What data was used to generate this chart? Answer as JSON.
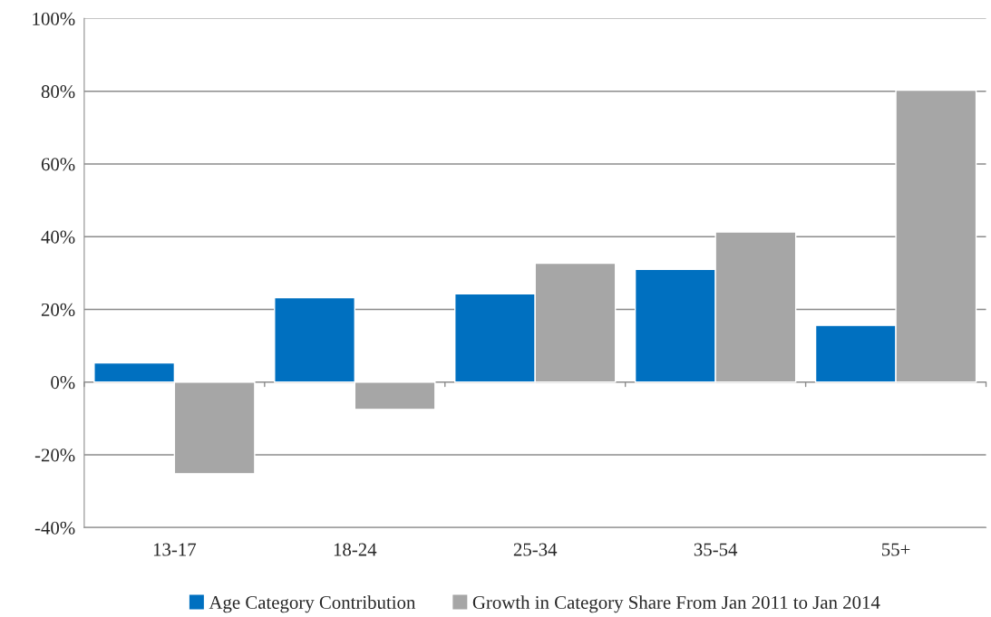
{
  "chart_data": {
    "type": "bar",
    "categories": [
      "13-17",
      "18-24",
      "25-34",
      "35-54",
      "55+"
    ],
    "series": [
      {
        "name": "Age Category Contribution",
        "color": "#0070c0",
        "values": [
          5.3,
          23.2,
          24.3,
          31,
          15.6
        ]
      },
      {
        "name": "Growth in Category Share From Jan 2011 to Jan 2014",
        "color": "#a6a6a6",
        "values": [
          -25.2,
          -7.5,
          32.7,
          41.3,
          80.3
        ]
      }
    ],
    "ylim": [
      -40,
      100
    ],
    "yticks": [
      {
        "value": -40,
        "label": "-40%"
      },
      {
        "value": -20,
        "label": "-20%"
      },
      {
        "value": 0,
        "label": "0%"
      },
      {
        "value": 20,
        "label": "20%"
      },
      {
        "value": 40,
        "label": "40%"
      },
      {
        "value": 60,
        "label": "60%"
      },
      {
        "value": 80,
        "label": "80%"
      },
      {
        "value": 100,
        "label": "100%"
      }
    ],
    "grid": "y",
    "legend": "bottom"
  }
}
